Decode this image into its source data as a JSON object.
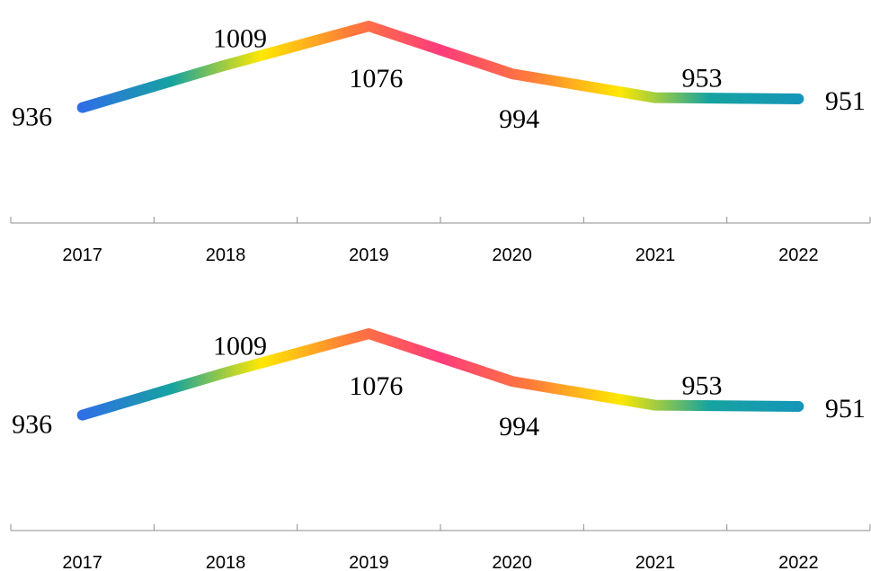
{
  "chart_data": [
    {
      "type": "line",
      "categories": [
        "2017",
        "2018",
        "2019",
        "2020",
        "2021",
        "2022"
      ],
      "values": [
        936,
        1009,
        1076,
        994,
        953,
        951
      ],
      "data_labels": [
        "936",
        "1009",
        "1076",
        "994",
        "953",
        "951"
      ],
      "ylim": [
        750,
        1090
      ],
      "grid": false,
      "legend": "none",
      "line_gradient": [
        "#2f6fe6",
        "#16a3a0",
        "#ffe800",
        "#ff7a3a",
        "#ff3b7c",
        "#ff7a3a",
        "#ffe800",
        "#16a3a0",
        "#1596b8"
      ]
    },
    {
      "type": "line",
      "categories": [
        "2017",
        "2018",
        "2019",
        "2020",
        "2021",
        "2022"
      ],
      "values": [
        936,
        1009,
        1076,
        994,
        953,
        951
      ],
      "data_labels": [
        "936",
        "1009",
        "1076",
        "994",
        "953",
        "951"
      ],
      "ylim": [
        750,
        1090
      ],
      "grid": false,
      "legend": "none",
      "line_gradient": [
        "#2f6fe6",
        "#16a3a0",
        "#ffe800",
        "#ff7a3a",
        "#ff3b7c",
        "#ff7a3a",
        "#ffe800",
        "#16a3a0",
        "#1596b8"
      ]
    }
  ]
}
